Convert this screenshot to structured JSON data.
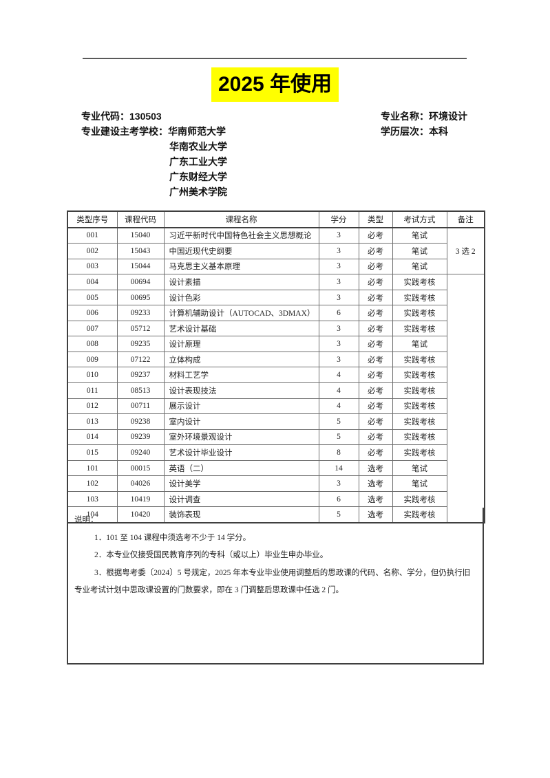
{
  "page": {
    "title": "2025 年使用"
  },
  "header": {
    "major_code_label": "专业代码：",
    "major_code": "130503",
    "major_name_label": "专业名称：",
    "major_name": "环境设计",
    "schools_label": "专业建设主考学校：",
    "schools": [
      "华南师范大学",
      "华南农业大学",
      "广东工业大学",
      "广东财经大学",
      "广州美术学院"
    ],
    "level_label": "学历层次：",
    "level": "本科"
  },
  "table": {
    "columns": [
      "类型序号",
      "课程代码",
      "课程名称",
      "学分",
      "类型",
      "考试方式",
      "备注"
    ],
    "rows": [
      {
        "seq": "001",
        "code": "15040",
        "name": "习近平新时代中国特色社会主义思想概论",
        "credits": "3",
        "type": "必考",
        "exam": "笔试"
      },
      {
        "seq": "002",
        "code": "15043",
        "name": "中国近现代史纲要",
        "credits": "3",
        "type": "必考",
        "exam": "笔试"
      },
      {
        "seq": "003",
        "code": "15044",
        "name": "马克思主义基本原理",
        "credits": "3",
        "type": "必考",
        "exam": "笔试"
      },
      {
        "seq": "004",
        "code": "00694",
        "name": "设计素描",
        "credits": "3",
        "type": "必考",
        "exam": "实践考核"
      },
      {
        "seq": "005",
        "code": "00695",
        "name": "设计色彩",
        "credits": "3",
        "type": "必考",
        "exam": "实践考核"
      },
      {
        "seq": "006",
        "code": "09233",
        "name": "计算机辅助设计（AUTOCAD、3DMAX）",
        "credits": "6",
        "type": "必考",
        "exam": "实践考核"
      },
      {
        "seq": "007",
        "code": "05712",
        "name": "艺术设计基础",
        "credits": "3",
        "type": "必考",
        "exam": "实践考核"
      },
      {
        "seq": "008",
        "code": "09235",
        "name": "设计原理",
        "credits": "3",
        "type": "必考",
        "exam": "笔试"
      },
      {
        "seq": "009",
        "code": "07122",
        "name": "立体构成",
        "credits": "3",
        "type": "必考",
        "exam": "实践考核"
      },
      {
        "seq": "010",
        "code": "09237",
        "name": "材料工艺学",
        "credits": "4",
        "type": "必考",
        "exam": "实践考核"
      },
      {
        "seq": "011",
        "code": "08513",
        "name": "设计表现技法",
        "credits": "4",
        "type": "必考",
        "exam": "实践考核"
      },
      {
        "seq": "012",
        "code": "00711",
        "name": "展示设计",
        "credits": "4",
        "type": "必考",
        "exam": "实践考核"
      },
      {
        "seq": "013",
        "code": "09238",
        "name": "室内设计",
        "credits": "5",
        "type": "必考",
        "exam": "实践考核"
      },
      {
        "seq": "014",
        "code": "09239",
        "name": "室外环境景观设计",
        "credits": "5",
        "type": "必考",
        "exam": "实践考核"
      },
      {
        "seq": "015",
        "code": "09240",
        "name": "艺术设计毕业设计",
        "credits": "8",
        "type": "必考",
        "exam": "实践考核"
      },
      {
        "seq": "101",
        "code": "00015",
        "name": "英语（二）",
        "credits": "14",
        "type": "选考",
        "exam": "笔试"
      },
      {
        "seq": "102",
        "code": "04026",
        "name": "设计美学",
        "credits": "3",
        "type": "选考",
        "exam": "笔试"
      },
      {
        "seq": "103",
        "code": "10419",
        "name": "设计调查",
        "credits": "6",
        "type": "选考",
        "exam": "实践考核"
      },
      {
        "seq": "104",
        "code": "10420",
        "name": "装饰表现",
        "credits": "5",
        "type": "选考",
        "exam": "实践考核"
      }
    ],
    "remark_group1": "3 选 2",
    "remark_group2": ""
  },
  "notes": {
    "label": "说明：",
    "items": [
      "1．101 至 104 课程中须选考不少于 14 学分。",
      "2．本专业仅接受国民教育序列的专科（或以上）毕业生申办毕业。",
      "3．根据粤考委〔2024〕5 号规定，2025 年本专业毕业使用调整后的思政课的代码、名称、学分，但仍执行旧专业考试计划中思政课设置的门数要求，即在 3 门调整后思政课中任选 2 门。"
    ]
  },
  "colors": {
    "highlight": "#ffff00",
    "border_dark": "#3f3f3f",
    "border_light": "#6e6e6e",
    "text": "#1a1a1a"
  }
}
